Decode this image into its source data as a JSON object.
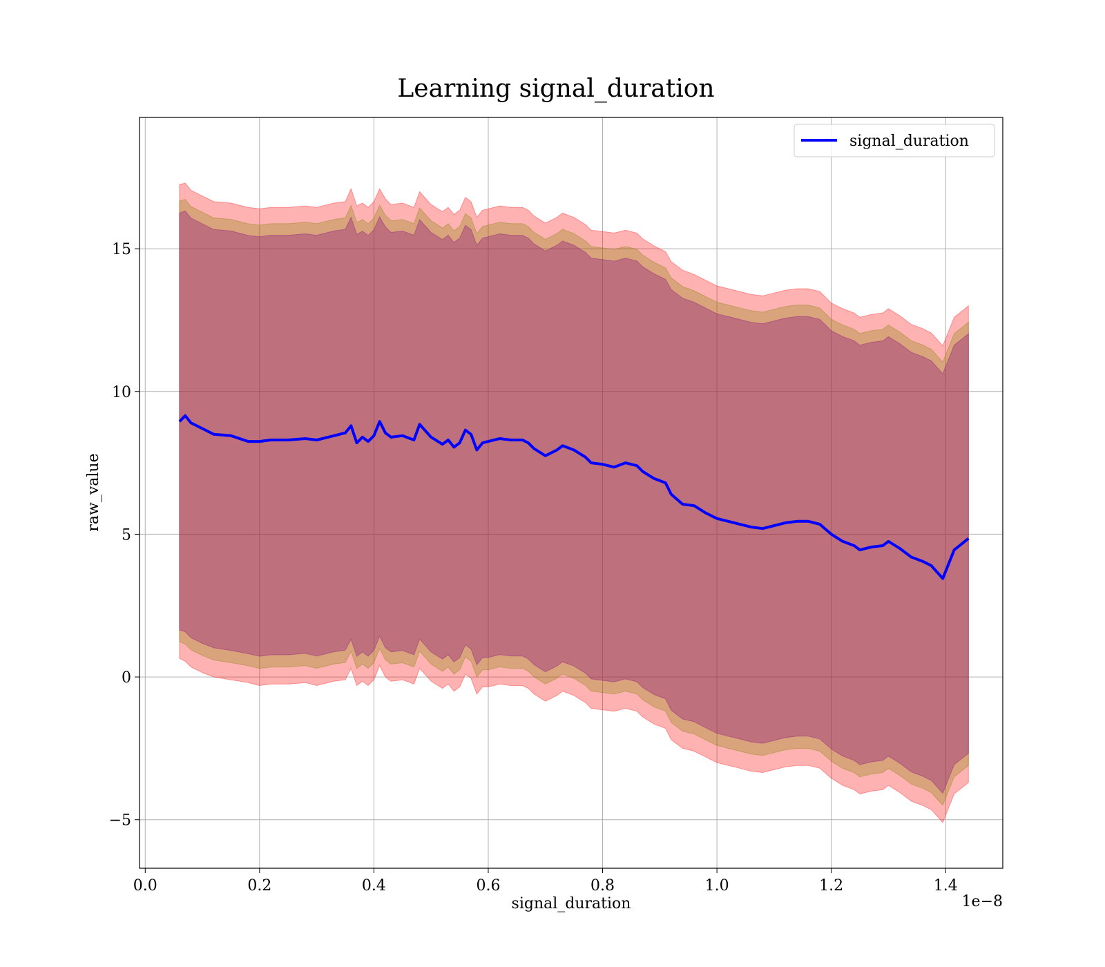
{
  "chart_data": {
    "type": "line",
    "title": "Learning signal_duration",
    "xlabel": "signal_duration",
    "ylabel": "raw_value",
    "x_offset_label": "1e−8",
    "xlim": [
      -0.01,
      1.5
    ],
    "ylim": [
      -6.7,
      19.6
    ],
    "x_ticks": [
      0.0,
      0.2,
      0.4,
      0.6,
      0.8,
      1.0,
      1.2,
      1.4
    ],
    "x_tick_labels": [
      "0.0",
      "0.2",
      "0.4",
      "0.6",
      "0.8",
      "1.0",
      "1.2",
      "1.4"
    ],
    "y_ticks": [
      -5,
      0,
      5,
      10,
      15
    ],
    "y_tick_labels": [
      "−5",
      "0",
      "5",
      "10",
      "15"
    ],
    "grid": true,
    "legend_position": "top-right",
    "series": [
      {
        "name": "signal_duration",
        "color": "#0000ff",
        "x": [
          0.06,
          0.07,
          0.08,
          0.1,
          0.12,
          0.15,
          0.18,
          0.2,
          0.22,
          0.25,
          0.28,
          0.3,
          0.33,
          0.35,
          0.36,
          0.37,
          0.38,
          0.39,
          0.4,
          0.41,
          0.42,
          0.43,
          0.45,
          0.47,
          0.48,
          0.5,
          0.52,
          0.53,
          0.54,
          0.55,
          0.56,
          0.57,
          0.58,
          0.59,
          0.6,
          0.62,
          0.64,
          0.66,
          0.67,
          0.68,
          0.7,
          0.72,
          0.73,
          0.75,
          0.77,
          0.78,
          0.8,
          0.82,
          0.84,
          0.86,
          0.87,
          0.89,
          0.91,
          0.92,
          0.94,
          0.96,
          0.98,
          1.0,
          1.02,
          1.04,
          1.06,
          1.08,
          1.1,
          1.12,
          1.14,
          1.16,
          1.18,
          1.2,
          1.22,
          1.24,
          1.25,
          1.27,
          1.29,
          1.3,
          1.32,
          1.34,
          1.36,
          1.375,
          1.395,
          1.415,
          1.44
        ],
        "y": [
          8.95,
          9.15,
          8.9,
          8.7,
          8.5,
          8.45,
          8.25,
          8.25,
          8.3,
          8.3,
          8.35,
          8.3,
          8.45,
          8.55,
          8.8,
          8.2,
          8.4,
          8.25,
          8.45,
          8.95,
          8.55,
          8.4,
          8.45,
          8.3,
          8.85,
          8.4,
          8.15,
          8.3,
          8.05,
          8.2,
          8.65,
          8.5,
          7.95,
          8.2,
          8.25,
          8.35,
          8.3,
          8.3,
          8.2,
          8.0,
          7.75,
          7.95,
          8.1,
          7.95,
          7.7,
          7.5,
          7.45,
          7.35,
          7.5,
          7.4,
          7.2,
          6.95,
          6.8,
          6.4,
          6.05,
          6.0,
          5.75,
          5.55,
          5.45,
          5.35,
          5.25,
          5.2,
          5.3,
          5.4,
          5.45,
          5.45,
          5.35,
          5.0,
          4.75,
          4.6,
          4.45,
          4.55,
          4.6,
          4.75,
          4.5,
          4.2,
          4.05,
          3.9,
          3.45,
          4.45,
          4.85
        ],
        "lower": [
          0.65,
          0.55,
          0.35,
          0.15,
          0.0,
          -0.1,
          -0.2,
          -0.3,
          -0.25,
          -0.25,
          -0.2,
          -0.3,
          -0.15,
          -0.1,
          0.3,
          -0.3,
          -0.15,
          -0.3,
          -0.1,
          0.4,
          0.0,
          -0.15,
          -0.1,
          -0.25,
          0.3,
          -0.15,
          -0.4,
          -0.25,
          -0.5,
          -0.35,
          0.1,
          -0.05,
          -0.6,
          -0.35,
          -0.35,
          -0.25,
          -0.3,
          -0.3,
          -0.4,
          -0.6,
          -0.85,
          -0.65,
          -0.5,
          -0.65,
          -0.9,
          -1.1,
          -1.15,
          -1.2,
          -1.1,
          -1.2,
          -1.4,
          -1.65,
          -1.8,
          -2.2,
          -2.5,
          -2.6,
          -2.8,
          -3.0,
          -3.1,
          -3.2,
          -3.3,
          -3.35,
          -3.25,
          -3.15,
          -3.1,
          -3.1,
          -3.2,
          -3.55,
          -3.8,
          -3.95,
          -4.1,
          -4.0,
          -3.95,
          -3.8,
          -4.05,
          -4.35,
          -4.5,
          -4.65,
          -5.1,
          -4.1,
          -3.7
        ],
        "upper": [
          17.25,
          17.3,
          17.05,
          16.85,
          16.65,
          16.6,
          16.45,
          16.4,
          16.45,
          16.45,
          16.5,
          16.45,
          16.6,
          16.65,
          17.1,
          16.5,
          16.6,
          16.45,
          16.65,
          17.1,
          16.75,
          16.55,
          16.6,
          16.45,
          17.0,
          16.55,
          16.3,
          16.45,
          16.2,
          16.35,
          16.8,
          16.65,
          16.1,
          16.35,
          16.4,
          16.5,
          16.45,
          16.45,
          16.35,
          16.15,
          15.9,
          16.1,
          16.25,
          16.1,
          15.85,
          15.65,
          15.6,
          15.55,
          15.65,
          15.55,
          15.35,
          15.1,
          14.9,
          14.55,
          14.25,
          14.1,
          13.9,
          13.7,
          13.6,
          13.5,
          13.4,
          13.35,
          13.45,
          13.55,
          13.6,
          13.6,
          13.5,
          13.1,
          12.9,
          12.75,
          12.6,
          12.7,
          12.75,
          12.9,
          12.65,
          12.35,
          12.2,
          12.05,
          11.6,
          12.6,
          13.0
        ]
      }
    ],
    "band_colors": {
      "outer": "#ff0000",
      "middle": "#808000",
      "inner": "#800080"
    }
  }
}
